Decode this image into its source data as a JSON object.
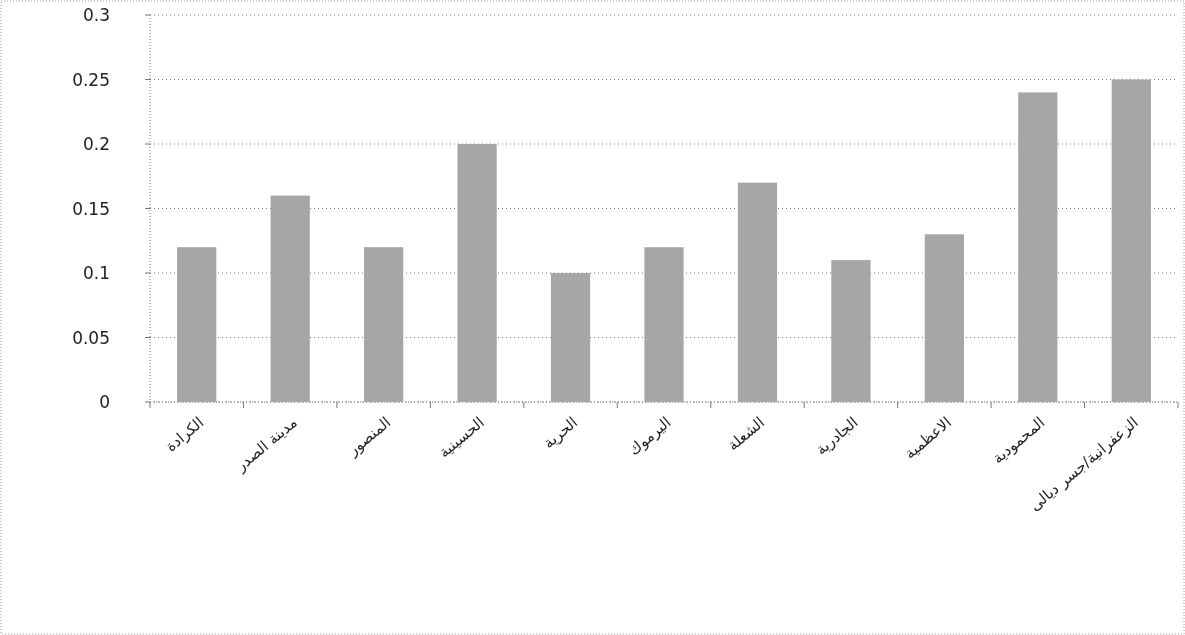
{
  "chart_data": {
    "type": "bar",
    "categories": [
      "الكرادة",
      "مدينة الصدر",
      "المنصور",
      "الحسينية",
      "الحرية",
      "اليرموك",
      "الشعلة",
      "الجادرية",
      "الاعظمية",
      "المحمودية",
      "الزعفرانية/جسر ديالى"
    ],
    "values": [
      0.12,
      0.16,
      0.12,
      0.2,
      0.1,
      0.12,
      0.17,
      0.11,
      0.13,
      0.24,
      0.25
    ],
    "color": "#a6a6a6",
    "ylim": [
      0,
      0.3
    ],
    "yticks": [
      0,
      0.05,
      0.1,
      0.15,
      0.2,
      0.25,
      0.3
    ],
    "grid": "y"
  }
}
